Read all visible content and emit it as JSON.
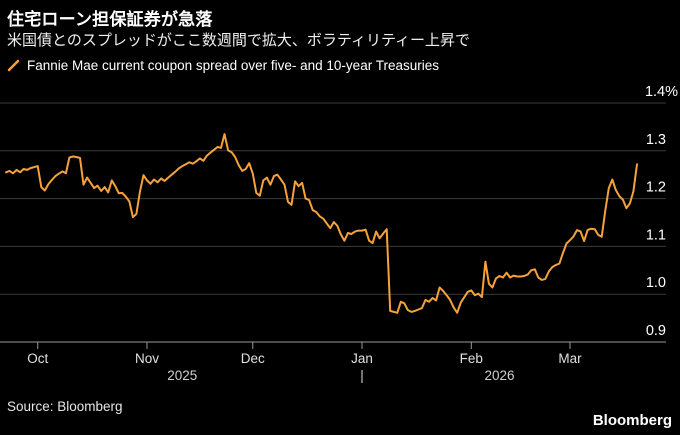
{
  "header": {
    "title": "住宅ローン担保証券が急落",
    "subtitle": "米国債とのスプレッドがここ数週間で拡大、ボラティリティー上昇で"
  },
  "legend": {
    "label": "Fannie Mae current coupon spread over five- and 10-year Treasuries"
  },
  "footer": {
    "source": "Source: Bloomberg",
    "logo": "Bloomberg"
  },
  "colors": {
    "background": "#000000",
    "line": "#F5A23B",
    "gridline": "#3A3A3A",
    "axis_line": "#9A9A9A",
    "tick_text": "#E0E0E0",
    "year_text": "#CFCFCF",
    "y_label_text": "#FFFFFF"
  },
  "chart_data": {
    "type": "line",
    "title": "Fannie Mae current coupon spread over five- and 10-year Treasuries",
    "unit": "%",
    "ylim": [
      0.9,
      1.4
    ],
    "grid": "horizontal",
    "legend_position": "top-left",
    "y_ticks": [
      {
        "value": 1.4,
        "label": "1.4%"
      },
      {
        "value": 1.3,
        "label": "1.3"
      },
      {
        "value": 1.2,
        "label": "1.2"
      },
      {
        "value": 1.1,
        "label": "1.1"
      },
      {
        "value": 1.0,
        "label": "1.0"
      },
      {
        "value": 0.9,
        "label": "0.9"
      }
    ],
    "x_start": "2025-09-22",
    "x_end": "2026-03-20",
    "x_ticks": [
      {
        "label": "Oct",
        "date": "2025-10-01"
      },
      {
        "label": "Nov",
        "date": "2025-11-01"
      },
      {
        "label": "Dec",
        "date": "2025-12-01"
      },
      {
        "label": "Jan",
        "date": "2026-01-01"
      },
      {
        "label": "Feb",
        "date": "2026-02-01"
      },
      {
        "label": "Mar",
        "date": "2026-03-01"
      }
    ],
    "year_labels": [
      {
        "label": "2025",
        "center_date": "2025-11-11"
      },
      {
        "label": "|",
        "center_date": "2026-01-01"
      },
      {
        "label": "2026",
        "center_date": "2026-02-09"
      }
    ],
    "points": [
      [
        "2025-09-22",
        1.255
      ],
      [
        "2025-09-23",
        1.258
      ],
      [
        "2025-09-24",
        1.253
      ],
      [
        "2025-09-25",
        1.26
      ],
      [
        "2025-09-26",
        1.255
      ],
      [
        "2025-09-27",
        1.262
      ],
      [
        "2025-09-28",
        1.26
      ],
      [
        "2025-09-29",
        1.264
      ],
      [
        "2025-09-30",
        1.266
      ],
      [
        "2025-10-01",
        1.268
      ],
      [
        "2025-10-02",
        1.224
      ],
      [
        "2025-10-03",
        1.217
      ],
      [
        "2025-10-04",
        1.23
      ],
      [
        "2025-10-05",
        1.239
      ],
      [
        "2025-10-06",
        1.247
      ],
      [
        "2025-10-07",
        1.252
      ],
      [
        "2025-10-08",
        1.257
      ],
      [
        "2025-10-09",
        1.253
      ],
      [
        "2025-10-10",
        1.286
      ],
      [
        "2025-10-11",
        1.288
      ],
      [
        "2025-10-12",
        1.287
      ],
      [
        "2025-10-13",
        1.285
      ],
      [
        "2025-10-14",
        1.229
      ],
      [
        "2025-10-15",
        1.244
      ],
      [
        "2025-10-16",
        1.233
      ],
      [
        "2025-10-17",
        1.222
      ],
      [
        "2025-10-18",
        1.227
      ],
      [
        "2025-10-19",
        1.216
      ],
      [
        "2025-10-20",
        1.224
      ],
      [
        "2025-10-21",
        1.213
      ],
      [
        "2025-10-22",
        1.238
      ],
      [
        "2025-10-23",
        1.226
      ],
      [
        "2025-10-24",
        1.211
      ],
      [
        "2025-10-25",
        1.212
      ],
      [
        "2025-10-26",
        1.204
      ],
      [
        "2025-10-27",
        1.194
      ],
      [
        "2025-10-28",
        1.161
      ],
      [
        "2025-10-29",
        1.168
      ],
      [
        "2025-10-30",
        1.214
      ],
      [
        "2025-10-31",
        1.249
      ],
      [
        "2025-11-01",
        1.238
      ],
      [
        "2025-11-02",
        1.231
      ],
      [
        "2025-11-03",
        1.24
      ],
      [
        "2025-11-04",
        1.234
      ],
      [
        "2025-11-05",
        1.242
      ],
      [
        "2025-11-06",
        1.237
      ],
      [
        "2025-11-07",
        1.244
      ],
      [
        "2025-11-08",
        1.25
      ],
      [
        "2025-11-09",
        1.256
      ],
      [
        "2025-11-10",
        1.263
      ],
      [
        "2025-11-11",
        1.268
      ],
      [
        "2025-11-12",
        1.272
      ],
      [
        "2025-11-13",
        1.276
      ],
      [
        "2025-11-14",
        1.273
      ],
      [
        "2025-11-15",
        1.278
      ],
      [
        "2025-11-16",
        1.284
      ],
      [
        "2025-11-17",
        1.279
      ],
      [
        "2025-11-18",
        1.29
      ],
      [
        "2025-11-19",
        1.296
      ],
      [
        "2025-11-20",
        1.302
      ],
      [
        "2025-11-21",
        1.308
      ],
      [
        "2025-11-22",
        1.306
      ],
      [
        "2025-11-23",
        1.335
      ],
      [
        "2025-11-24",
        1.301
      ],
      [
        "2025-11-25",
        1.297
      ],
      [
        "2025-11-26",
        1.287
      ],
      [
        "2025-11-27",
        1.27
      ],
      [
        "2025-11-28",
        1.258
      ],
      [
        "2025-11-29",
        1.262
      ],
      [
        "2025-11-30",
        1.274
      ],
      [
        "2025-12-01",
        1.252
      ],
      [
        "2025-12-02",
        1.212
      ],
      [
        "2025-12-03",
        1.206
      ],
      [
        "2025-12-04",
        1.238
      ],
      [
        "2025-12-05",
        1.244
      ],
      [
        "2025-12-06",
        1.229
      ],
      [
        "2025-12-07",
        1.247
      ],
      [
        "2025-12-08",
        1.25
      ],
      [
        "2025-12-09",
        1.24
      ],
      [
        "2025-12-10",
        1.229
      ],
      [
        "2025-12-11",
        1.193
      ],
      [
        "2025-12-12",
        1.187
      ],
      [
        "2025-12-13",
        1.236
      ],
      [
        "2025-12-14",
        1.226
      ],
      [
        "2025-12-15",
        1.233
      ],
      [
        "2025-12-16",
        1.2
      ],
      [
        "2025-12-17",
        1.197
      ],
      [
        "2025-12-18",
        1.176
      ],
      [
        "2025-12-19",
        1.172
      ],
      [
        "2025-12-20",
        1.163
      ],
      [
        "2025-12-21",
        1.158
      ],
      [
        "2025-12-22",
        1.148
      ],
      [
        "2025-12-23",
        1.138
      ],
      [
        "2025-12-24",
        1.151
      ],
      [
        "2025-12-25",
        1.143
      ],
      [
        "2025-12-26",
        1.125
      ],
      [
        "2025-12-27",
        1.112
      ],
      [
        "2025-12-28",
        1.128
      ],
      [
        "2025-12-29",
        1.126
      ],
      [
        "2025-12-30",
        1.131
      ],
      [
        "2025-12-31",
        1.133
      ],
      [
        "2026-01-01",
        1.133
      ],
      [
        "2026-01-02",
        1.135
      ],
      [
        "2026-01-03",
        1.112
      ],
      [
        "2026-01-04",
        1.107
      ],
      [
        "2026-01-05",
        1.131
      ],
      [
        "2026-01-06",
        1.117
      ],
      [
        "2026-01-07",
        1.127
      ],
      [
        "2026-01-08",
        1.136
      ],
      [
        "2026-01-09",
        0.965
      ],
      [
        "2026-01-10",
        0.963
      ],
      [
        "2026-01-11",
        0.961
      ],
      [
        "2026-01-12",
        0.984
      ],
      [
        "2026-01-13",
        0.981
      ],
      [
        "2026-01-14",
        0.967
      ],
      [
        "2026-01-15",
        0.963
      ],
      [
        "2026-01-16",
        0.965
      ],
      [
        "2026-01-17",
        0.968
      ],
      [
        "2026-01-18",
        0.971
      ],
      [
        "2026-01-19",
        0.988
      ],
      [
        "2026-01-20",
        0.984
      ],
      [
        "2026-01-21",
        0.992
      ],
      [
        "2026-01-22",
        0.987
      ],
      [
        "2026-01-23",
        1.014
      ],
      [
        "2026-01-24",
        1.007
      ],
      [
        "2026-01-25",
        0.998
      ],
      [
        "2026-01-26",
        0.988
      ],
      [
        "2026-01-27",
        0.972
      ],
      [
        "2026-01-28",
        0.961
      ],
      [
        "2026-01-29",
        0.982
      ],
      [
        "2026-01-30",
        0.994
      ],
      [
        "2026-01-31",
        1.005
      ],
      [
        "2026-02-01",
        1.008
      ],
      [
        "2026-02-02",
        0.998
      ],
      [
        "2026-02-03",
        1.001
      ],
      [
        "2026-02-04",
        0.994
      ],
      [
        "2026-02-05",
        1.068
      ],
      [
        "2026-02-06",
        1.022
      ],
      [
        "2026-02-07",
        1.014
      ],
      [
        "2026-02-08",
        1.033
      ],
      [
        "2026-02-09",
        1.038
      ],
      [
        "2026-02-10",
        1.035
      ],
      [
        "2026-02-11",
        1.045
      ],
      [
        "2026-02-12",
        1.035
      ],
      [
        "2026-02-13",
        1.039
      ],
      [
        "2026-02-14",
        1.037
      ],
      [
        "2026-02-15",
        1.037
      ],
      [
        "2026-02-16",
        1.038
      ],
      [
        "2026-02-17",
        1.041
      ],
      [
        "2026-02-18",
        1.05
      ],
      [
        "2026-02-19",
        1.052
      ],
      [
        "2026-02-20",
        1.035
      ],
      [
        "2026-02-21",
        1.03
      ],
      [
        "2026-02-22",
        1.032
      ],
      [
        "2026-02-23",
        1.048
      ],
      [
        "2026-02-24",
        1.057
      ],
      [
        "2026-02-25",
        1.061
      ],
      [
        "2026-02-26",
        1.064
      ],
      [
        "2026-02-27",
        1.086
      ],
      [
        "2026-02-28",
        1.106
      ],
      [
        "2026-03-01",
        1.113
      ],
      [
        "2026-03-02",
        1.121
      ],
      [
        "2026-03-03",
        1.134
      ],
      [
        "2026-03-04",
        1.131
      ],
      [
        "2026-03-05",
        1.111
      ],
      [
        "2026-03-06",
        1.134
      ],
      [
        "2026-03-07",
        1.137
      ],
      [
        "2026-03-08",
        1.136
      ],
      [
        "2026-03-09",
        1.124
      ],
      [
        "2026-03-10",
        1.12
      ],
      [
        "2026-03-11",
        1.175
      ],
      [
        "2026-03-12",
        1.222
      ],
      [
        "2026-03-13",
        1.24
      ],
      [
        "2026-03-14",
        1.218
      ],
      [
        "2026-03-15",
        1.205
      ],
      [
        "2026-03-16",
        1.198
      ],
      [
        "2026-03-17",
        1.18
      ],
      [
        "2026-03-18",
        1.19
      ],
      [
        "2026-03-19",
        1.215
      ],
      [
        "2026-03-20",
        1.272
      ]
    ]
  }
}
